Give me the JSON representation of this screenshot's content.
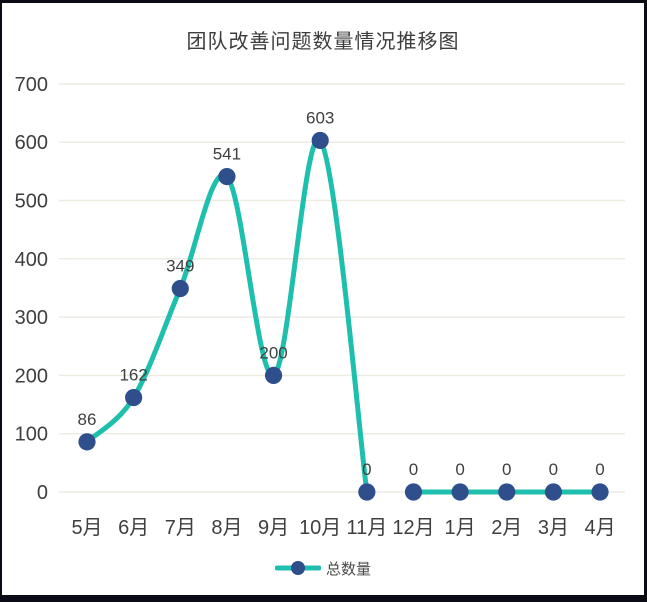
{
  "chart_data": {
    "type": "line",
    "title": "团队改善问题数量情况推移图",
    "categories": [
      "5月",
      "6月",
      "7月",
      "8月",
      "9月",
      "10月",
      "11月",
      "12月",
      "1月",
      "2月",
      "3月",
      "4月"
    ],
    "series": [
      {
        "name": "总数量",
        "values": [
          86,
          162,
          349,
          541,
          200,
          603,
          0,
          0,
          0,
          0,
          0,
          0
        ]
      }
    ],
    "data_labels": [
      "86",
      "162",
      "349",
      "541",
      "200",
      "603",
      "0",
      "0",
      "0",
      "0",
      "0",
      "0"
    ],
    "y_ticks": [
      0,
      100,
      200,
      300,
      400,
      500,
      600,
      700
    ],
    "ylim": [
      0,
      700
    ],
    "grid": "horizontal",
    "smooth": true,
    "segments": [
      [
        0,
        6
      ],
      [
        7,
        11
      ]
    ],
    "legend_position": "bottom",
    "colors": {
      "line": "#1fbfad",
      "marker": "#2e4e8c",
      "gridline": "#eeebe3",
      "axis_text": "#3f3f3f",
      "label_text": "#3f3f3f"
    }
  }
}
